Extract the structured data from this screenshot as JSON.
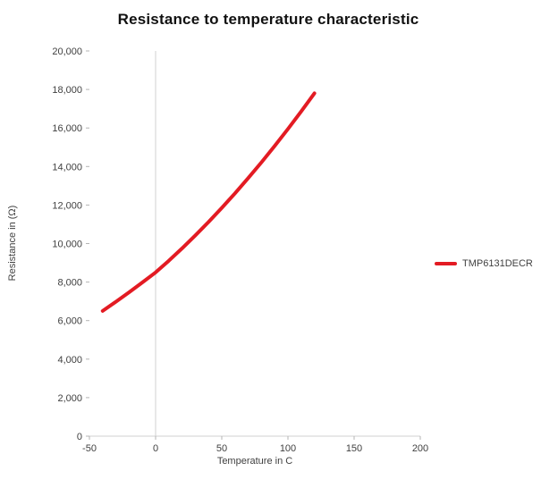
{
  "chart_data": {
    "type": "line",
    "title": "Resistance to temperature characteristic",
    "xlabel": "Temperature in C",
    "ylabel": "Resistance in (Ω)",
    "xlim": [
      -50,
      200
    ],
    "ylim": [
      0,
      20000
    ],
    "grid": {
      "vertical_axis_line_at_x": 0,
      "horizontal_axis_line_at_y": 0,
      "gridlines": "off",
      "axis_color": "#d0d0d0"
    },
    "x_ticks": [
      {
        "v": -50,
        "label": "-50"
      },
      {
        "v": 0,
        "label": "0"
      },
      {
        "v": 50,
        "label": "50"
      },
      {
        "v": 100,
        "label": "100"
      },
      {
        "v": 150,
        "label": "150"
      },
      {
        "v": 200,
        "label": "200"
      }
    ],
    "y_ticks": [
      {
        "v": 0,
        "label": "0"
      },
      {
        "v": 2000,
        "label": "2,000"
      },
      {
        "v": 4000,
        "label": "4,000"
      },
      {
        "v": 6000,
        "label": "6,000"
      },
      {
        "v": 8000,
        "label": "8,000"
      },
      {
        "v": 10000,
        "label": "10,000"
      },
      {
        "v": 12000,
        "label": "12,000"
      },
      {
        "v": 14000,
        "label": "14,000"
      },
      {
        "v": 16000,
        "label": "16,000"
      },
      {
        "v": 18000,
        "label": "18,000"
      },
      {
        "v": 20000,
        "label": "20,000"
      }
    ],
    "legend": {
      "position": "right",
      "entries": [
        {
          "label": "TMP6131DECR",
          "color": "#e31b23"
        }
      ]
    },
    "series": [
      {
        "name": "TMP6131DECR",
        "color": "#e31b23",
        "x": [
          -40,
          -30,
          -20,
          -10,
          0,
          10,
          20,
          30,
          40,
          50,
          60,
          70,
          80,
          90,
          100,
          110,
          120
        ],
        "y": [
          6500,
          6980,
          7470,
          7980,
          8500,
          9110,
          9750,
          10420,
          11120,
          11850,
          12610,
          13400,
          14220,
          15070,
          15950,
          16860,
          17800
        ]
      }
    ]
  }
}
